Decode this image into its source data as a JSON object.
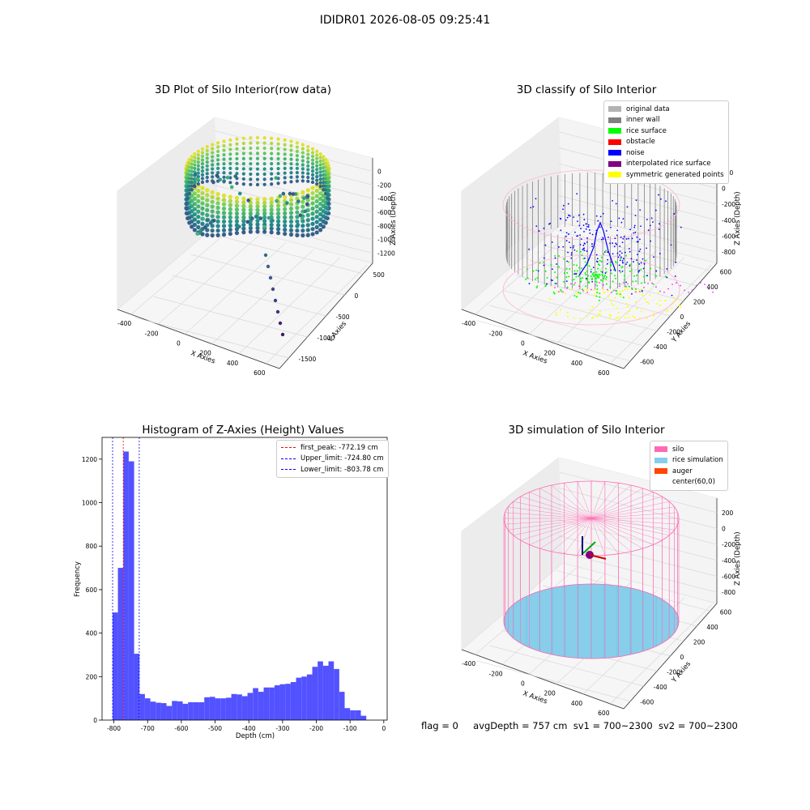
{
  "suptitle": "IDIDR01 2026-08-05 09:25:41",
  "panels": {
    "raw": {
      "title": "3D Plot of Silo Interior(row data)",
      "xlabel": "X Axies",
      "ylabel": "Y Axies",
      "zlabel": "Z Axies (Depth)",
      "xticks": [
        "-400",
        "-200",
        "0",
        "200",
        "400",
        "600"
      ],
      "yticks": [
        "500",
        "0",
        "-500",
        "-1000",
        "-1500"
      ],
      "zticks": [
        "0",
        "-200",
        "-400",
        "-600",
        "-800",
        "-1000",
        "-1200"
      ]
    },
    "classify": {
      "title": "3D classify of Silo Interior",
      "xlabel": "X Axies",
      "ylabel": "Y Axies",
      "zlabel": "Z Axies (Depth)",
      "xticks": [
        "-400",
        "-200",
        "0",
        "200",
        "400",
        "600"
      ],
      "yticks": [
        "600",
        "400",
        "200",
        "0",
        "-200",
        "-400",
        "-600"
      ],
      "zticks": [
        "200",
        "0",
        "-200",
        "-400",
        "-600",
        "-800"
      ],
      "legend": [
        {
          "label": "original data",
          "color": "#b3b3b3"
        },
        {
          "label": "inner wall",
          "color": "#808080"
        },
        {
          "label": "rice surface",
          "color": "#00ff00"
        },
        {
          "label": "obstacle",
          "color": "#ff0000"
        },
        {
          "label": "noise",
          "color": "#0000ff"
        },
        {
          "label": "interpolated rice surface",
          "color": "#800080"
        },
        {
          "label": "symmetric generated points",
          "color": "#ffff00"
        }
      ]
    },
    "simulation": {
      "title": "3D simulation of Silo Interior",
      "xlabel": "X Axies",
      "ylabel": "Y Axies",
      "zlabel": "Z Axies (Depth)",
      "xticks": [
        "-400",
        "-200",
        "0",
        "200",
        "400",
        "600"
      ],
      "yticks": [
        "600",
        "400",
        "200",
        "0",
        "-200",
        "-400",
        "-600"
      ],
      "zticks": [
        "200",
        "0",
        "-200",
        "-400",
        "-600",
        "-800"
      ],
      "legend": [
        {
          "label": "silo",
          "color": "#ff69b4"
        },
        {
          "label": "rice simulation",
          "color": "#87ceeb"
        },
        {
          "label": "auger",
          "color": "#ff4500"
        },
        {
          "label": "center(60,0)",
          "color": ""
        }
      ]
    }
  },
  "status": {
    "flag": "flag = 0",
    "avg": "avgDepth = 757 cm",
    "sv1": "sv1 = 700~2300",
    "sv2": "sv2 = 700~2300"
  },
  "chart_data": [
    {
      "type": "scatter",
      "title": "3D Plot of Silo Interior(row data)",
      "xlabel": "X Axies",
      "ylabel": "Y Axies",
      "zlabel": "Z Axies (Depth)",
      "xlim": [
        -500,
        650
      ],
      "ylim": [
        -1550,
        650
      ],
      "zlim": [
        -1350,
        50
      ],
      "colormap": "viridis"
    },
    {
      "type": "scatter",
      "title": "3D classify of Silo Interior",
      "xlabel": "X Axies",
      "ylabel": "Y Axies",
      "zlabel": "Z Axies (Depth)",
      "xlim": [
        -500,
        650
      ],
      "ylim": [
        -650,
        650
      ],
      "zlim": [
        -850,
        250
      ],
      "series": [
        {
          "name": "original data"
        },
        {
          "name": "inner wall"
        },
        {
          "name": "rice surface"
        },
        {
          "name": "obstacle"
        },
        {
          "name": "noise"
        },
        {
          "name": "interpolated rice surface"
        },
        {
          "name": "symmetric generated points"
        }
      ],
      "legend_position": "upper right"
    },
    {
      "type": "bar",
      "title": "Histogram of Z-Axies (Height) Values",
      "xlabel": "Depth (cm)",
      "ylabel": "Frequency",
      "xlim": [
        -835,
        10
      ],
      "ylim": [
        0,
        1300
      ],
      "xticks": [
        -800,
        -700,
        -600,
        -500,
        -400,
        -300,
        -200,
        -100,
        0
      ],
      "yticks": [
        0,
        200,
        400,
        600,
        800,
        1000,
        1200
      ],
      "bin_width": 16,
      "bin_left_edges": [
        -804,
        -788,
        -772,
        -756,
        -740,
        -724,
        -708,
        -692,
        -676,
        -660,
        -644,
        -628,
        -612,
        -596,
        -580,
        -564,
        -548,
        -532,
        -516,
        -500,
        -484,
        -468,
        -452,
        -436,
        -420,
        -404,
        -388,
        -372,
        -356,
        -340,
        -324,
        -308,
        -292,
        -276,
        -260,
        -244,
        -228,
        -212,
        -196,
        -180,
        -164,
        -148,
        -132,
        -116,
        -100,
        -84,
        -68,
        -52,
        -36,
        -20
      ],
      "values": [
        495,
        700,
        1235,
        1190,
        305,
        120,
        100,
        85,
        80,
        78,
        65,
        88,
        86,
        75,
        82,
        82,
        82,
        105,
        107,
        100,
        100,
        103,
        120,
        118,
        110,
        125,
        147,
        130,
        150,
        150,
        160,
        165,
        167,
        175,
        195,
        200,
        210,
        245,
        270,
        250,
        270,
        235,
        130,
        55,
        45,
        45,
        20,
        0,
        0,
        0
      ],
      "bar_color": "#5252ff",
      "vlines": [
        {
          "name": "first_peak: -772.19 cm",
          "x": -772.19,
          "color": "#ff0000"
        },
        {
          "name": "Upper_limit: -724.80 cm",
          "x": -724.8,
          "color": "#0000ff"
        },
        {
          "name": "Lower_limit: -803.78 cm",
          "x": -803.78,
          "color": "#0000ff"
        }
      ],
      "legend_position": "upper right"
    },
    {
      "type": "scatter",
      "title": "3D simulation of Silo Interior",
      "xlabel": "X Axies",
      "ylabel": "Y Axies",
      "zlabel": "Z Axies (Depth)",
      "xlim": [
        -500,
        650
      ],
      "ylim": [
        -650,
        650
      ],
      "zlim": [
        -850,
        250
      ],
      "series": [
        {
          "name": "silo"
        },
        {
          "name": "rice simulation"
        },
        {
          "name": "auger"
        },
        {
          "name": "center(60,0)"
        }
      ],
      "legend_position": "upper right"
    }
  ]
}
